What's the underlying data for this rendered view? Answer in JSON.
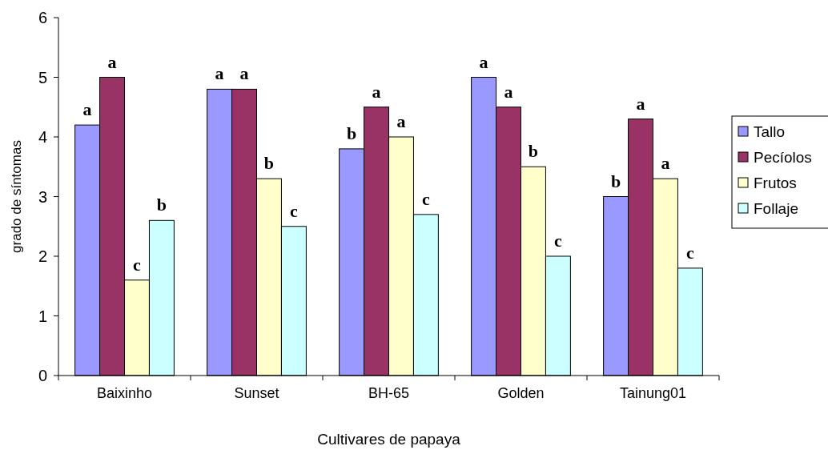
{
  "chart_data": {
    "type": "bar",
    "xlabel": "Cultivares de papaya",
    "ylabel": "grado de síntomas",
    "categories": [
      "Baixinho",
      "Sunset",
      "BH-65",
      "Golden",
      "Tainung01"
    ],
    "series": [
      {
        "name": "Tallo",
        "color": "#9999ff",
        "values": [
          4.2,
          4.8,
          3.8,
          5.0,
          3.0
        ],
        "value_labels": [
          "a",
          "a",
          "b",
          "a",
          "b"
        ]
      },
      {
        "name": "Pecíolos",
        "color": "#993366",
        "values": [
          5.0,
          4.8,
          4.5,
          4.5,
          4.3
        ],
        "value_labels": [
          "a",
          "a",
          "a",
          "a",
          "a"
        ]
      },
      {
        "name": "Frutos",
        "color": "#ffffcc",
        "values": [
          1.6,
          3.3,
          4.0,
          3.5,
          3.3
        ],
        "value_labels": [
          "c",
          "b",
          "a",
          "b",
          "a"
        ]
      },
      {
        "name": "Follaje",
        "color": "#ccffff",
        "values": [
          2.6,
          2.5,
          2.7,
          2.0,
          1.8
        ],
        "value_labels": [
          "b",
          "c",
          "c",
          "c",
          "c"
        ]
      }
    ],
    "ylim": [
      0,
      6
    ],
    "yticks": [
      0,
      1,
      2,
      3,
      4,
      5,
      6
    ],
    "grid": false,
    "legend": "right"
  }
}
